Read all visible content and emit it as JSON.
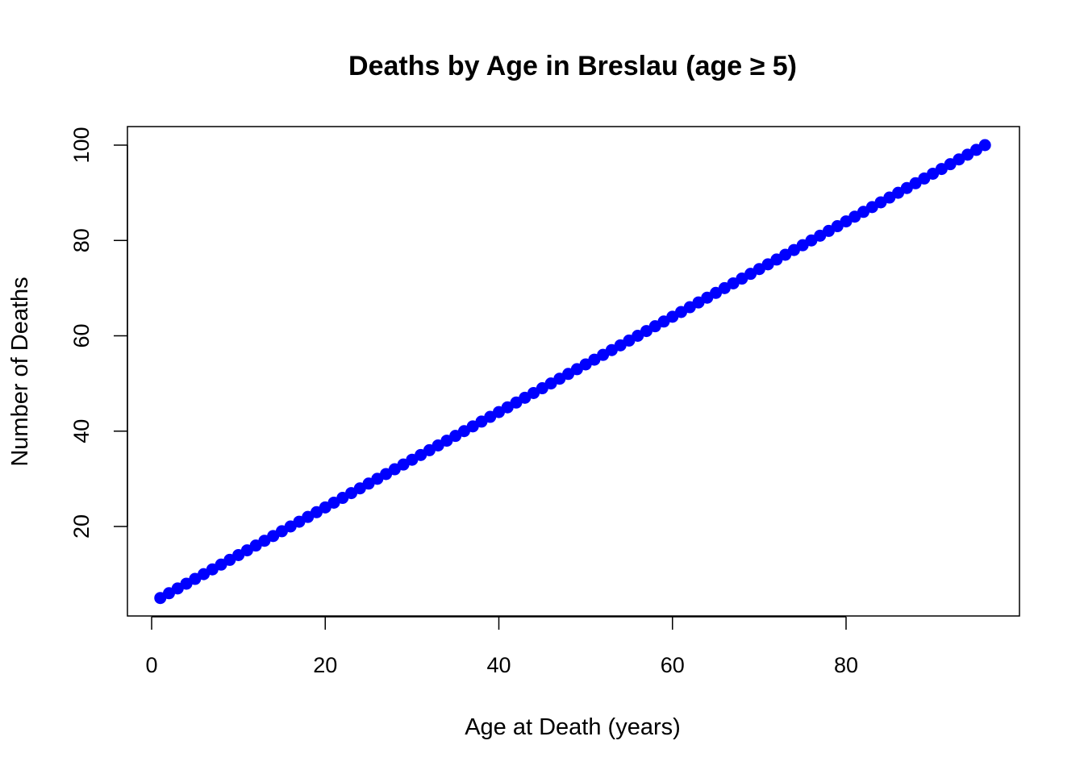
{
  "chart_data": {
    "type": "scatter",
    "title": "Deaths by Age in Breslau (age ≥ 5)",
    "xlabel": "Age at Death (years)",
    "ylabel": "Number of Deaths",
    "xlim": [
      0,
      96
    ],
    "ylim": [
      5,
      100
    ],
    "x_ticks": [
      "0",
      "20",
      "40",
      "60",
      "80"
    ],
    "y_ticks": [
      "20",
      "40",
      "60",
      "80",
      "100"
    ],
    "grid": false,
    "legend": "none",
    "series": [
      {
        "color": "#0000ff",
        "x_start": 1,
        "x_end": 96,
        "x_step": 1,
        "y_start": 5,
        "y_step": 1
      }
    ]
  }
}
